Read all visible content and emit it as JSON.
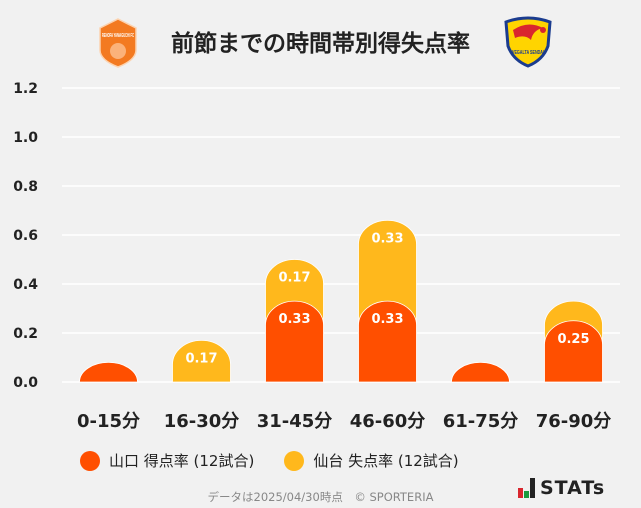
{
  "header": {
    "title": "前節までの時間帯別得失点率",
    "home_logo_text": "RENOFA YAMAGUCHI FC",
    "away_logo_text": "VEGALTA SENDAI"
  },
  "chart_data": {
    "type": "bar",
    "stacked": true,
    "title": "前節までの時間帯別得失点率",
    "categories": [
      "0-15分",
      "16-30分",
      "31-45分",
      "46-60分",
      "61-75分",
      "76-90分"
    ],
    "series": [
      {
        "name": "山口 得点率 (12試合)",
        "color": "#ff4f00",
        "values": [
          0.08,
          0,
          0.33,
          0.33,
          0.08,
          0.25
        ],
        "labels": [
          "",
          "",
          "0.33",
          "0.33",
          "",
          "0.25"
        ]
      },
      {
        "name": "仙台 失点率 (12試合)",
        "color": "#ffb81c",
        "values": [
          0,
          0.17,
          0.17,
          0.33,
          0,
          0.08
        ],
        "labels": [
          "",
          "0.17",
          "0.17",
          "0.33",
          "",
          ""
        ]
      }
    ],
    "yticks": [
      "0.0",
      "0.2",
      "0.4",
      "0.6",
      "0.8",
      "1.0",
      "1.2"
    ],
    "ylim": [
      0,
      1.2
    ],
    "grid": true,
    "legend": "bottom"
  },
  "footer": {
    "note": "データは2025/04/30時点　© SPORTERIA",
    "brand": "STATs"
  }
}
